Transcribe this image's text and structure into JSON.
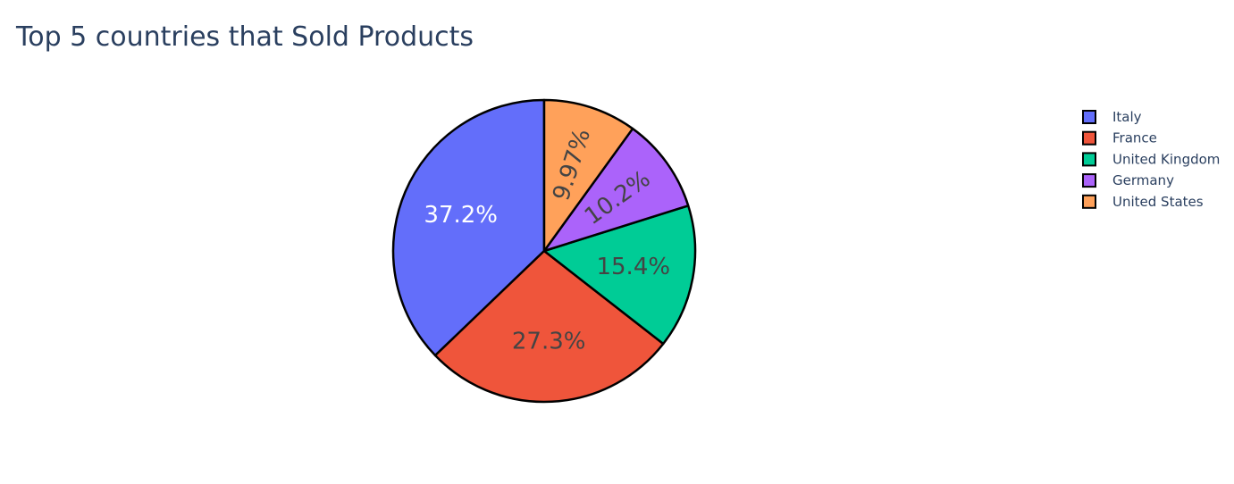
{
  "chart_data": {
    "type": "pie",
    "title": "Top 5 countries that Sold Products",
    "labels": [
      "Italy",
      "France",
      "United Kingdom",
      "Germany",
      "United States"
    ],
    "values": [
      37.2,
      27.3,
      15.4,
      10.2,
      9.97
    ],
    "value_labels": [
      "37.2%",
      "27.3%",
      "15.4%",
      "10.2%",
      "9.97%"
    ],
    "colors": [
      "#636efa",
      "#ef553b",
      "#00cc96",
      "#ab63fa",
      "#ffa15a"
    ],
    "label_colors": [
      "#ffffff",
      "#444444",
      "#444444",
      "#444444",
      "#444444"
    ],
    "direction": "counterclockwise",
    "rotation_start": "12 o'clock",
    "legend_position": "top-right",
    "show_legend": true
  }
}
